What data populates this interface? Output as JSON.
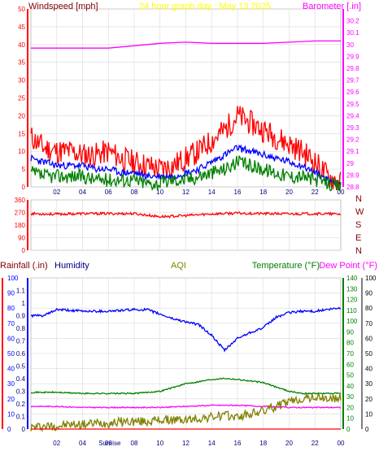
{
  "chart_data": [
    {
      "type": "line",
      "title": "24 hour graph day : May 13 2025",
      "ylabel_left": "Windspeed [mph]",
      "ylabel_right": "Barometer [.in]",
      "x_ticks": [
        "02",
        "04",
        "06",
        "08",
        "10",
        "12",
        "14",
        "16",
        "18",
        "20",
        "22",
        "00"
      ],
      "ylim_left": [
        0,
        50
      ],
      "y_ticks_left": [
        "0",
        "5",
        "10",
        "15",
        "20",
        "25",
        "30",
        "35",
        "40",
        "45",
        "50"
      ],
      "ylim_right": [
        28.8,
        30.3
      ],
      "y_ticks_right": [
        "28.8",
        "28.9",
        "29",
        "29.1",
        "29.2",
        "29.3",
        "29.4",
        "29.5",
        "29.6",
        "29.7",
        "29.8",
        "29.9",
        "30",
        "30.1",
        "30.2"
      ],
      "grid": true,
      "colors": {
        "gust": "#ff0000",
        "wind_avg": "#0000ff",
        "wind": "#008000",
        "barometer": "#ff00ff",
        "title": "#ffff00",
        "left_label": "#800000"
      },
      "series": [
        {
          "axis": "right",
          "color": "#ff00ff",
          "x": [
            0,
            2,
            4,
            6,
            8,
            10,
            12,
            14,
            16,
            18,
            20,
            22,
            24
          ],
          "values": [
            29.97,
            29.97,
            29.97,
            29.97,
            29.99,
            30.01,
            30.02,
            30.01,
            30.01,
            30.01,
            30.02,
            30.03,
            30.03
          ]
        },
        {
          "axis": "left",
          "color": "#ff0000",
          "x": [
            0,
            1,
            2,
            3,
            4,
            5,
            6,
            7,
            8,
            9,
            10,
            11,
            12,
            13,
            14,
            15,
            16,
            17,
            18,
            19,
            20,
            21,
            22,
            23,
            24
          ],
          "values": [
            14,
            11,
            10,
            10,
            9,
            9,
            10,
            8,
            7,
            6,
            5,
            6,
            8,
            10,
            13,
            16,
            20,
            18,
            16,
            14,
            12,
            10,
            7,
            3,
            1
          ]
        },
        {
          "axis": "left",
          "color": "#0000ff",
          "x": [
            0,
            1,
            2,
            3,
            4,
            5,
            6,
            7,
            8,
            9,
            10,
            11,
            12,
            13,
            14,
            15,
            16,
            17,
            18,
            19,
            20,
            21,
            22,
            23,
            24
          ],
          "values": [
            8,
            7,
            6,
            6,
            6,
            5,
            5,
            4,
            4,
            3,
            3,
            3,
            4,
            5,
            7,
            9,
            11,
            10,
            9,
            8,
            7,
            6,
            4,
            2,
            1
          ]
        },
        {
          "axis": "left",
          "color": "#008000",
          "x": [
            0,
            1,
            2,
            3,
            4,
            5,
            6,
            7,
            8,
            9,
            10,
            11,
            12,
            13,
            14,
            15,
            16,
            17,
            18,
            19,
            20,
            21,
            22,
            23,
            24
          ],
          "values": [
            4,
            3,
            3,
            3,
            3,
            2,
            2,
            2,
            2,
            1,
            1,
            2,
            2,
            3,
            4,
            5,
            7,
            6,
            5,
            4,
            3,
            3,
            2,
            1,
            0
          ]
        }
      ]
    },
    {
      "type": "line",
      "ylim": [
        0,
        360
      ],
      "y_ticks": [
        "0",
        "90",
        "180",
        "270",
        "360"
      ],
      "compass_labels": [
        "N",
        "W",
        "S",
        "E",
        "N"
      ],
      "x_ticks": [],
      "grid": true,
      "series": [
        {
          "color": "#ff0000",
          "x": [
            0,
            2,
            4,
            6,
            8,
            10,
            12,
            14,
            16,
            18,
            20,
            22,
            24
          ],
          "values": [
            262,
            258,
            262,
            262,
            262,
            240,
            248,
            260,
            265,
            262,
            260,
            262,
            258
          ]
        }
      ]
    },
    {
      "type": "line",
      "labels": {
        "rainfall": "Rainfall (.in)",
        "humidity": "Humidity",
        "aqi": "AQI",
        "temperature": "Temperature (°F)",
        "dewpoint": "Dew Point (°F)"
      },
      "colors": {
        "rainfall": "#800000",
        "humidity": "#000080",
        "aqi": "#808000",
        "temperature": "#008000",
        "dewpoint": "#ff00ff",
        "rain_axis": "#ff0000",
        "hum_axis": "#0000ff",
        "temp_axis": "#008000",
        "aqi_axis": "#000000"
      },
      "x_ticks": [
        "02",
        "04",
        "06",
        "08",
        "10",
        "12",
        "14",
        "16",
        "18",
        "20",
        "22",
        "00"
      ],
      "sunrise_label": "Sunrise",
      "sunrise_hour": 6.1,
      "ylim_rain": [
        0,
        1.2
      ],
      "y_ticks_rain": [
        "0",
        "0.1",
        "0.2",
        "0.3",
        "0.4",
        "0.5",
        "0.6",
        "0.7",
        "0.8",
        "0.9",
        "1",
        "1.1"
      ],
      "ylim_hum": [
        0,
        100
      ],
      "y_ticks_hum": [
        "0",
        "10",
        "20",
        "30",
        "40",
        "50",
        "60",
        "70",
        "80",
        "90",
        "100"
      ],
      "ylim_temp": [
        0,
        140
      ],
      "y_ticks_temp": [
        "0",
        "10",
        "20",
        "30",
        "40",
        "50",
        "60",
        "70",
        "80",
        "90",
        "100",
        "110",
        "120",
        "130",
        "140"
      ],
      "ylim_aqi": [
        0,
        100
      ],
      "y_ticks_aqi": [
        "0",
        "10",
        "20",
        "30",
        "40",
        "50",
        "60",
        "70",
        "80",
        "90",
        "100"
      ],
      "grid": true,
      "series": [
        {
          "axis": "hum",
          "color": "#0000ff",
          "x": [
            0,
            1,
            2,
            4,
            6,
            8,
            9,
            10,
            11,
            12,
            13,
            14,
            15,
            16,
            17,
            18,
            19,
            20,
            21,
            22,
            23,
            24
          ],
          "values": [
            75,
            75,
            79,
            78,
            78,
            79,
            79,
            76,
            73,
            71,
            69,
            62,
            52,
            60,
            64,
            67,
            74,
            77,
            78,
            78,
            79,
            80
          ]
        },
        {
          "axis": "temp",
          "color": "#008000",
          "x": [
            0,
            2,
            4,
            6,
            8,
            10,
            12,
            14,
            15,
            16,
            18,
            20,
            21,
            22,
            23,
            24
          ],
          "values": [
            34,
            34,
            33,
            33,
            33,
            35,
            42,
            46,
            47,
            46,
            43,
            35,
            33,
            33,
            33,
            33
          ]
        },
        {
          "axis": "temp",
          "color": "#ff00ff",
          "x": [
            0,
            2,
            4,
            6,
            8,
            10,
            12,
            14,
            16,
            18,
            20,
            22,
            24
          ],
          "values": [
            21,
            21,
            20,
            20,
            20,
            20,
            21,
            22,
            22,
            21,
            20,
            20,
            20
          ]
        },
        {
          "axis": "aqi",
          "color": "#808000",
          "x": [
            0,
            1,
            2,
            3,
            4,
            5,
            6,
            7,
            8,
            9,
            10,
            11,
            12,
            13,
            14,
            15,
            16,
            17,
            18,
            19,
            20,
            21,
            22,
            23,
            24
          ],
          "values": [
            1,
            2,
            2,
            3,
            3,
            4,
            4,
            5,
            5,
            5,
            6,
            6,
            6,
            7,
            8,
            9,
            8,
            10,
            12,
            15,
            18,
            20,
            21,
            20,
            20
          ]
        },
        {
          "axis": "rain",
          "color": "#ff0000",
          "x": [
            0,
            24
          ],
          "values": [
            0,
            0
          ]
        }
      ]
    }
  ]
}
